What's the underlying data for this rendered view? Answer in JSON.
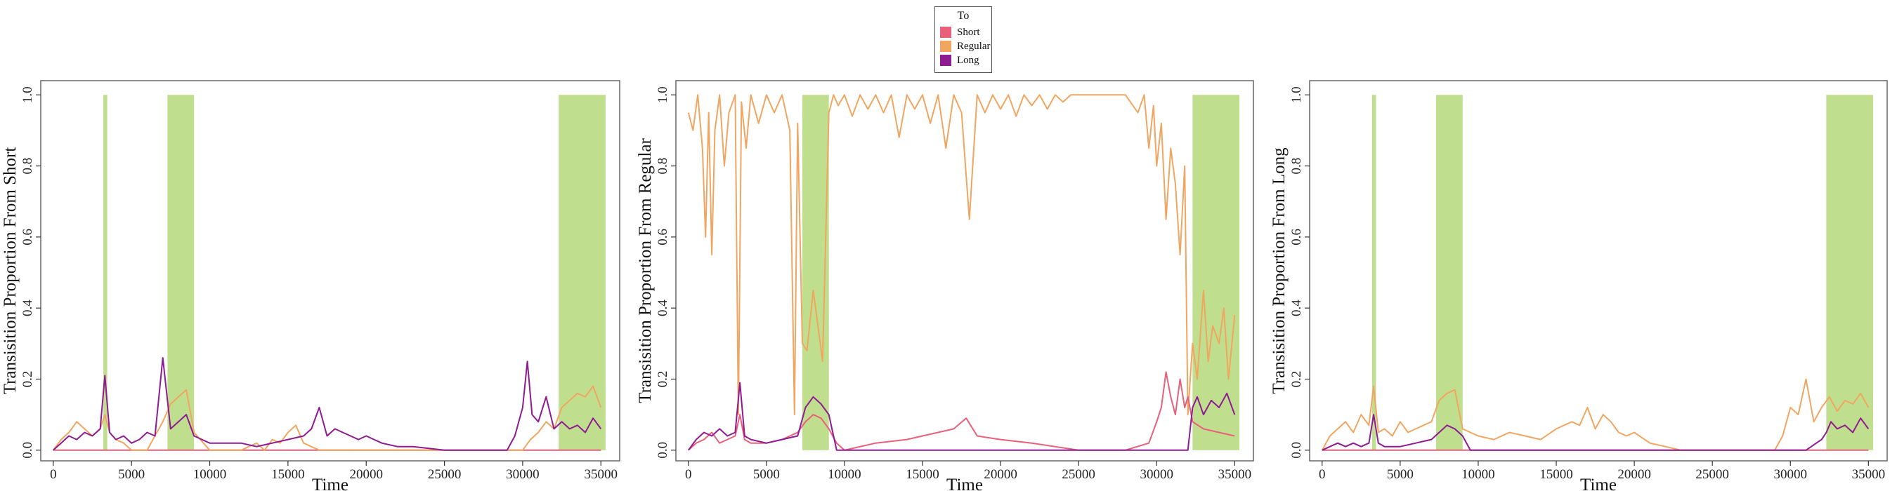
{
  "legend": {
    "title": "To",
    "items": [
      {
        "label": "Short",
        "color": "#e8607a"
      },
      {
        "label": "Regular",
        "color": "#f0a661"
      },
      {
        "label": "Long",
        "color": "#8e1b91"
      }
    ]
  },
  "chart_data": [
    {
      "type": "line",
      "xlabel": "Time",
      "ylabel": "Transisition Proportion From Short",
      "xlim": [
        -800,
        36200
      ],
      "ylim": [
        -0.03,
        1.04
      ],
      "xticks": [
        0,
        5000,
        10000,
        15000,
        20000,
        25000,
        30000,
        35000
      ],
      "yticks": [
        0.0,
        0.2,
        0.4,
        0.6,
        0.8,
        1.0
      ],
      "ytick_labels": [
        "0.0",
        "0.2",
        "0.4",
        "0.6",
        "0.8",
        "1.0"
      ],
      "highlight_color": "#b5d97a",
      "highlights": [
        [
          3200,
          3450
        ],
        [
          7300,
          9000
        ],
        [
          32300,
          35300
        ]
      ],
      "series": [
        {
          "name": "Short",
          "color": "#e8607a",
          "x": [
            0,
            35000
          ],
          "values": [
            0.0,
            0.0
          ]
        },
        {
          "name": "Regular",
          "color": "#f0a661",
          "x": [
            0,
            500,
            1000,
            1500,
            2000,
            2500,
            3000,
            3300,
            3600,
            4000,
            4500,
            5000,
            6000,
            7000,
            7500,
            8000,
            8500,
            9000,
            10000,
            11000,
            12000,
            13000,
            13500,
            14000,
            14500,
            15000,
            15500,
            16000,
            17000,
            18000,
            19000,
            20000,
            21000,
            22000,
            24000,
            26000,
            28000,
            29000,
            30000,
            30500,
            31000,
            31500,
            32000,
            32500,
            33000,
            33500,
            34000,
            34500,
            35000
          ],
          "values": [
            0.0,
            0.03,
            0.05,
            0.08,
            0.06,
            0.04,
            0.06,
            0.1,
            0.05,
            0.03,
            0.02,
            0.0,
            0.0,
            0.08,
            0.13,
            0.15,
            0.17,
            0.05,
            0.0,
            0.0,
            0.0,
            0.02,
            0.0,
            0.03,
            0.02,
            0.05,
            0.07,
            0.02,
            0.0,
            0.0,
            0.0,
            0.0,
            0.0,
            0.0,
            0.0,
            0.0,
            0.0,
            0.0,
            0.0,
            0.03,
            0.05,
            0.08,
            0.06,
            0.12,
            0.14,
            0.16,
            0.15,
            0.18,
            0.12
          ]
        },
        {
          "name": "Long",
          "color": "#8e1b91",
          "x": [
            0,
            500,
            1000,
            1500,
            2000,
            2500,
            3000,
            3300,
            3600,
            4000,
            4500,
            5000,
            5500,
            6000,
            6500,
            7000,
            7500,
            8000,
            8500,
            9000,
            10000,
            11000,
            12000,
            13000,
            14000,
            15000,
            16000,
            16500,
            17000,
            17500,
            18000,
            18500,
            19000,
            19500,
            20000,
            20500,
            21000,
            22000,
            23000,
            25000,
            27000,
            29000,
            29500,
            30000,
            30300,
            30600,
            31000,
            31500,
            32000,
            32500,
            33000,
            33500,
            34000,
            34500,
            35000
          ],
          "values": [
            0.0,
            0.02,
            0.04,
            0.03,
            0.05,
            0.04,
            0.06,
            0.21,
            0.05,
            0.03,
            0.04,
            0.02,
            0.03,
            0.05,
            0.04,
            0.26,
            0.06,
            0.08,
            0.1,
            0.04,
            0.02,
            0.02,
            0.02,
            0.01,
            0.02,
            0.03,
            0.04,
            0.06,
            0.12,
            0.04,
            0.06,
            0.05,
            0.04,
            0.03,
            0.04,
            0.03,
            0.02,
            0.01,
            0.01,
            0.0,
            0.0,
            0.0,
            0.04,
            0.12,
            0.25,
            0.1,
            0.08,
            0.15,
            0.06,
            0.08,
            0.06,
            0.07,
            0.05,
            0.09,
            0.06
          ]
        }
      ]
    },
    {
      "type": "line",
      "xlabel": "Time",
      "ylabel": "Transisition Proportion From Regular",
      "xlim": [
        -800,
        36200
      ],
      "ylim": [
        -0.03,
        1.04
      ],
      "xticks": [
        0,
        5000,
        10000,
        15000,
        20000,
        25000,
        30000,
        35000
      ],
      "yticks": [
        0.0,
        0.2,
        0.4,
        0.6,
        0.8,
        1.0
      ],
      "ytick_labels": [
        "0.0",
        "0.2",
        "0.4",
        "0.6",
        "0.8",
        "1.0"
      ],
      "highlight_color": "#b5d97a",
      "highlights": [
        [
          7300,
          9000
        ],
        [
          32300,
          35300
        ]
      ],
      "series": [
        {
          "name": "Regular",
          "color": "#f0a661",
          "x": [
            0,
            300,
            600,
            900,
            1100,
            1300,
            1500,
            1700,
            2000,
            2300,
            2600,
            3000,
            3200,
            3400,
            3700,
            4000,
            4500,
            5000,
            5500,
            6000,
            6500,
            6800,
            7000,
            7300,
            7600,
            8000,
            8300,
            8600,
            9000,
            9300,
            9600,
            10000,
            10500,
            11000,
            11500,
            12000,
            12500,
            13000,
            13500,
            14000,
            14500,
            15000,
            15500,
            16000,
            16500,
            17000,
            17500,
            18000,
            18500,
            19000,
            19500,
            20000,
            20500,
            21000,
            21500,
            22000,
            22500,
            23000,
            23500,
            24000,
            24500,
            25000,
            26000,
            27000,
            28000,
            28800,
            29200,
            29500,
            29800,
            30000,
            30300,
            30600,
            30900,
            31200,
            31500,
            31800,
            32000,
            32300,
            32600,
            33000,
            33300,
            33600,
            34000,
            34300,
            34600,
            35000
          ],
          "values": [
            0.95,
            0.9,
            1.0,
            0.85,
            0.6,
            0.95,
            0.55,
            0.9,
            1.0,
            0.8,
            0.95,
            1.0,
            0.1,
            0.98,
            0.85,
            1.0,
            0.92,
            1.0,
            0.95,
            1.0,
            0.9,
            0.1,
            0.92,
            0.3,
            0.28,
            0.45,
            0.35,
            0.25,
            0.95,
            1.0,
            0.97,
            1.0,
            0.94,
            1.0,
            0.96,
            1.0,
            0.95,
            1.0,
            0.88,
            1.0,
            0.96,
            1.0,
            0.92,
            1.0,
            0.85,
            1.0,
            0.95,
            0.65,
            1.0,
            0.95,
            1.0,
            0.96,
            1.0,
            0.94,
            1.0,
            0.97,
            1.0,
            0.96,
            1.0,
            0.98,
            1.0,
            1.0,
            1.0,
            1.0,
            1.0,
            0.95,
            1.0,
            0.85,
            0.97,
            0.8,
            0.92,
            0.65,
            0.85,
            0.75,
            0.55,
            0.8,
            0.1,
            0.3,
            0.2,
            0.45,
            0.25,
            0.35,
            0.3,
            0.4,
            0.2,
            0.38
          ]
        },
        {
          "name": "Short",
          "color": "#e8607a",
          "x": [
            0,
            500,
            1000,
            1500,
            2000,
            2500,
            3000,
            3300,
            3600,
            4000,
            5000,
            6000,
            7000,
            7500,
            8000,
            8500,
            9000,
            9500,
            10000,
            12000,
            14000,
            15000,
            16000,
            17000,
            17800,
            18500,
            20000,
            22000,
            25000,
            28000,
            29500,
            30000,
            30300,
            30600,
            30900,
            31200,
            31500,
            31800,
            32000,
            32300,
            33000,
            34000,
            35000
          ],
          "values": [
            0.0,
            0.02,
            0.03,
            0.05,
            0.02,
            0.03,
            0.04,
            0.1,
            0.03,
            0.02,
            0.02,
            0.03,
            0.05,
            0.08,
            0.1,
            0.09,
            0.06,
            0.02,
            0.0,
            0.02,
            0.03,
            0.04,
            0.05,
            0.06,
            0.09,
            0.04,
            0.03,
            0.02,
            0.0,
            0.0,
            0.02,
            0.08,
            0.12,
            0.22,
            0.15,
            0.1,
            0.2,
            0.12,
            0.15,
            0.08,
            0.06,
            0.05,
            0.04
          ]
        },
        {
          "name": "Long",
          "color": "#8e1b91",
          "x": [
            0,
            500,
            1000,
            1500,
            2000,
            2500,
            3000,
            3300,
            3600,
            4000,
            5000,
            6000,
            7000,
            7500,
            8000,
            8500,
            9000,
            9500,
            10000,
            15000,
            20000,
            25000,
            30000,
            31000,
            32000,
            32300,
            32600,
            33000,
            33500,
            34000,
            34500,
            35000
          ],
          "values": [
            0.0,
            0.03,
            0.05,
            0.04,
            0.06,
            0.04,
            0.05,
            0.19,
            0.04,
            0.03,
            0.02,
            0.03,
            0.04,
            0.12,
            0.15,
            0.13,
            0.1,
            0.0,
            0.0,
            0.0,
            0.0,
            0.0,
            0.0,
            0.0,
            0.0,
            0.12,
            0.15,
            0.1,
            0.14,
            0.12,
            0.16,
            0.1
          ]
        }
      ]
    },
    {
      "type": "line",
      "xlabel": "Time",
      "ylabel": "Transisition Proportion From Long",
      "xlim": [
        -800,
        36200
      ],
      "ylim": [
        -0.03,
        1.04
      ],
      "xticks": [
        0,
        5000,
        10000,
        15000,
        20000,
        25000,
        30000,
        35000
      ],
      "yticks": [
        0.0,
        0.2,
        0.4,
        0.6,
        0.8,
        1.0
      ],
      "ytick_labels": [
        "0.0",
        "0.2",
        "0.4",
        "0.6",
        "0.8",
        "1.0"
      ],
      "highlight_color": "#b5d97a",
      "highlights": [
        [
          3200,
          3450
        ],
        [
          7300,
          9000
        ],
        [
          32300,
          35300
        ]
      ],
      "series": [
        {
          "name": "Short",
          "color": "#e8607a",
          "x": [
            0,
            35000
          ],
          "values": [
            0.0,
            0.0
          ]
        },
        {
          "name": "Regular",
          "color": "#f0a661",
          "x": [
            0,
            500,
            1000,
            1500,
            2000,
            2500,
            3000,
            3300,
            3600,
            4000,
            4500,
            5000,
            5500,
            6000,
            6500,
            7000,
            7500,
            8000,
            8500,
            9000,
            10000,
            11000,
            12000,
            13000,
            14000,
            15000,
            16000,
            16500,
            17000,
            17500,
            18000,
            18500,
            19000,
            19500,
            20000,
            21000,
            22000,
            23000,
            24000,
            26000,
            28000,
            29000,
            29500,
            30000,
            30500,
            31000,
            31500,
            32000,
            32500,
            33000,
            33500,
            34000,
            34500,
            35000
          ],
          "values": [
            0.0,
            0.04,
            0.06,
            0.08,
            0.05,
            0.1,
            0.07,
            0.18,
            0.05,
            0.06,
            0.04,
            0.08,
            0.05,
            0.06,
            0.07,
            0.08,
            0.14,
            0.16,
            0.17,
            0.06,
            0.04,
            0.03,
            0.05,
            0.04,
            0.03,
            0.06,
            0.08,
            0.07,
            0.12,
            0.06,
            0.1,
            0.08,
            0.05,
            0.04,
            0.05,
            0.02,
            0.01,
            0.0,
            0.0,
            0.0,
            0.0,
            0.0,
            0.04,
            0.12,
            0.1,
            0.2,
            0.08,
            0.12,
            0.15,
            0.11,
            0.14,
            0.13,
            0.16,
            0.12
          ]
        },
        {
          "name": "Long",
          "color": "#8e1b91",
          "x": [
            0,
            500,
            1000,
            1500,
            2000,
            2500,
            3000,
            3300,
            3600,
            4000,
            5000,
            6000,
            7000,
            7500,
            8000,
            8500,
            9000,
            9500,
            10000,
            15000,
            20000,
            25000,
            30000,
            31000,
            32000,
            32300,
            32600,
            33000,
            33500,
            34000,
            34500,
            35000
          ],
          "values": [
            0.0,
            0.01,
            0.02,
            0.01,
            0.02,
            0.01,
            0.02,
            0.1,
            0.02,
            0.01,
            0.01,
            0.02,
            0.03,
            0.05,
            0.07,
            0.06,
            0.04,
            0.0,
            0.0,
            0.0,
            0.0,
            0.0,
            0.0,
            0.0,
            0.03,
            0.05,
            0.08,
            0.06,
            0.07,
            0.05,
            0.09,
            0.06
          ]
        }
      ]
    }
  ]
}
